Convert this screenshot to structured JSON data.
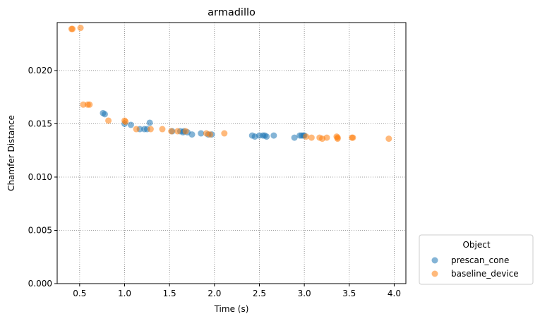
{
  "chart_data": {
    "type": "scatter",
    "title": "armadillo",
    "xlabel": "Time (s)",
    "ylabel": "Chamfer Distance",
    "xlim": [
      0.25,
      4.13
    ],
    "ylim": [
      0.0,
      0.0245
    ],
    "xticks": [
      0.5,
      1.0,
      1.5,
      2.0,
      2.5,
      3.0,
      3.5,
      4.0
    ],
    "xtick_labels": [
      "0.5",
      "1.0",
      "1.5",
      "2.0",
      "2.5",
      "3.0",
      "3.5",
      "4.0"
    ],
    "yticks": [
      0.0,
      0.005,
      0.01,
      0.015,
      0.02
    ],
    "ytick_labels": [
      "0.000",
      "0.005",
      "0.010",
      "0.015",
      "0.020"
    ],
    "grid": true,
    "legend": {
      "title": "Object",
      "placement": "outside-lower-right"
    },
    "series": [
      {
        "name": "prescan_cone",
        "color": "#1f77b4",
        "points": [
          [
            0.76,
            0.016
          ],
          [
            0.78,
            0.0159
          ],
          [
            1.0,
            0.015
          ],
          [
            1.07,
            0.0149
          ],
          [
            1.17,
            0.0145
          ],
          [
            1.22,
            0.0145
          ],
          [
            1.25,
            0.0145
          ],
          [
            1.28,
            0.0151
          ],
          [
            1.53,
            0.0143
          ],
          [
            1.62,
            0.0143
          ],
          [
            1.65,
            0.0142
          ],
          [
            1.66,
            0.0143
          ],
          [
            1.7,
            0.0142
          ],
          [
            1.75,
            0.014
          ],
          [
            1.85,
            0.0141
          ],
          [
            1.93,
            0.014
          ],
          [
            1.97,
            0.014
          ],
          [
            2.42,
            0.0139
          ],
          [
            2.45,
            0.0138
          ],
          [
            2.5,
            0.0139
          ],
          [
            2.54,
            0.0139
          ],
          [
            2.56,
            0.0139
          ],
          [
            2.58,
            0.0138
          ],
          [
            2.66,
            0.0139
          ],
          [
            2.89,
            0.0137
          ],
          [
            2.95,
            0.0139
          ],
          [
            2.97,
            0.0139
          ],
          [
            2.99,
            0.0139
          ],
          [
            3.0,
            0.0139
          ]
        ]
      },
      {
        "name": "baseline_device",
        "color": "#ff7f0e",
        "points": [
          [
            0.41,
            0.0239
          ],
          [
            0.42,
            0.0239
          ],
          [
            0.51,
            0.024
          ],
          [
            0.54,
            0.0168
          ],
          [
            0.59,
            0.0168
          ],
          [
            0.61,
            0.0168
          ],
          [
            0.82,
            0.0153
          ],
          [
            1.0,
            0.0153
          ],
          [
            1.01,
            0.0152
          ],
          [
            1.13,
            0.0145
          ],
          [
            1.29,
            0.0145
          ],
          [
            1.42,
            0.0145
          ],
          [
            1.52,
            0.0143
          ],
          [
            1.59,
            0.0143
          ],
          [
            1.68,
            0.0143
          ],
          [
            1.91,
            0.0141
          ],
          [
            1.95,
            0.014
          ],
          [
            2.11,
            0.0141
          ],
          [
            3.02,
            0.0138
          ],
          [
            3.08,
            0.0137
          ],
          [
            3.17,
            0.0137
          ],
          [
            3.2,
            0.0136
          ],
          [
            3.25,
            0.0137
          ],
          [
            3.36,
            0.0138
          ],
          [
            3.37,
            0.0137
          ],
          [
            3.37,
            0.0136
          ],
          [
            3.53,
            0.0137
          ],
          [
            3.54,
            0.0137
          ],
          [
            3.94,
            0.0136
          ]
        ]
      }
    ]
  }
}
